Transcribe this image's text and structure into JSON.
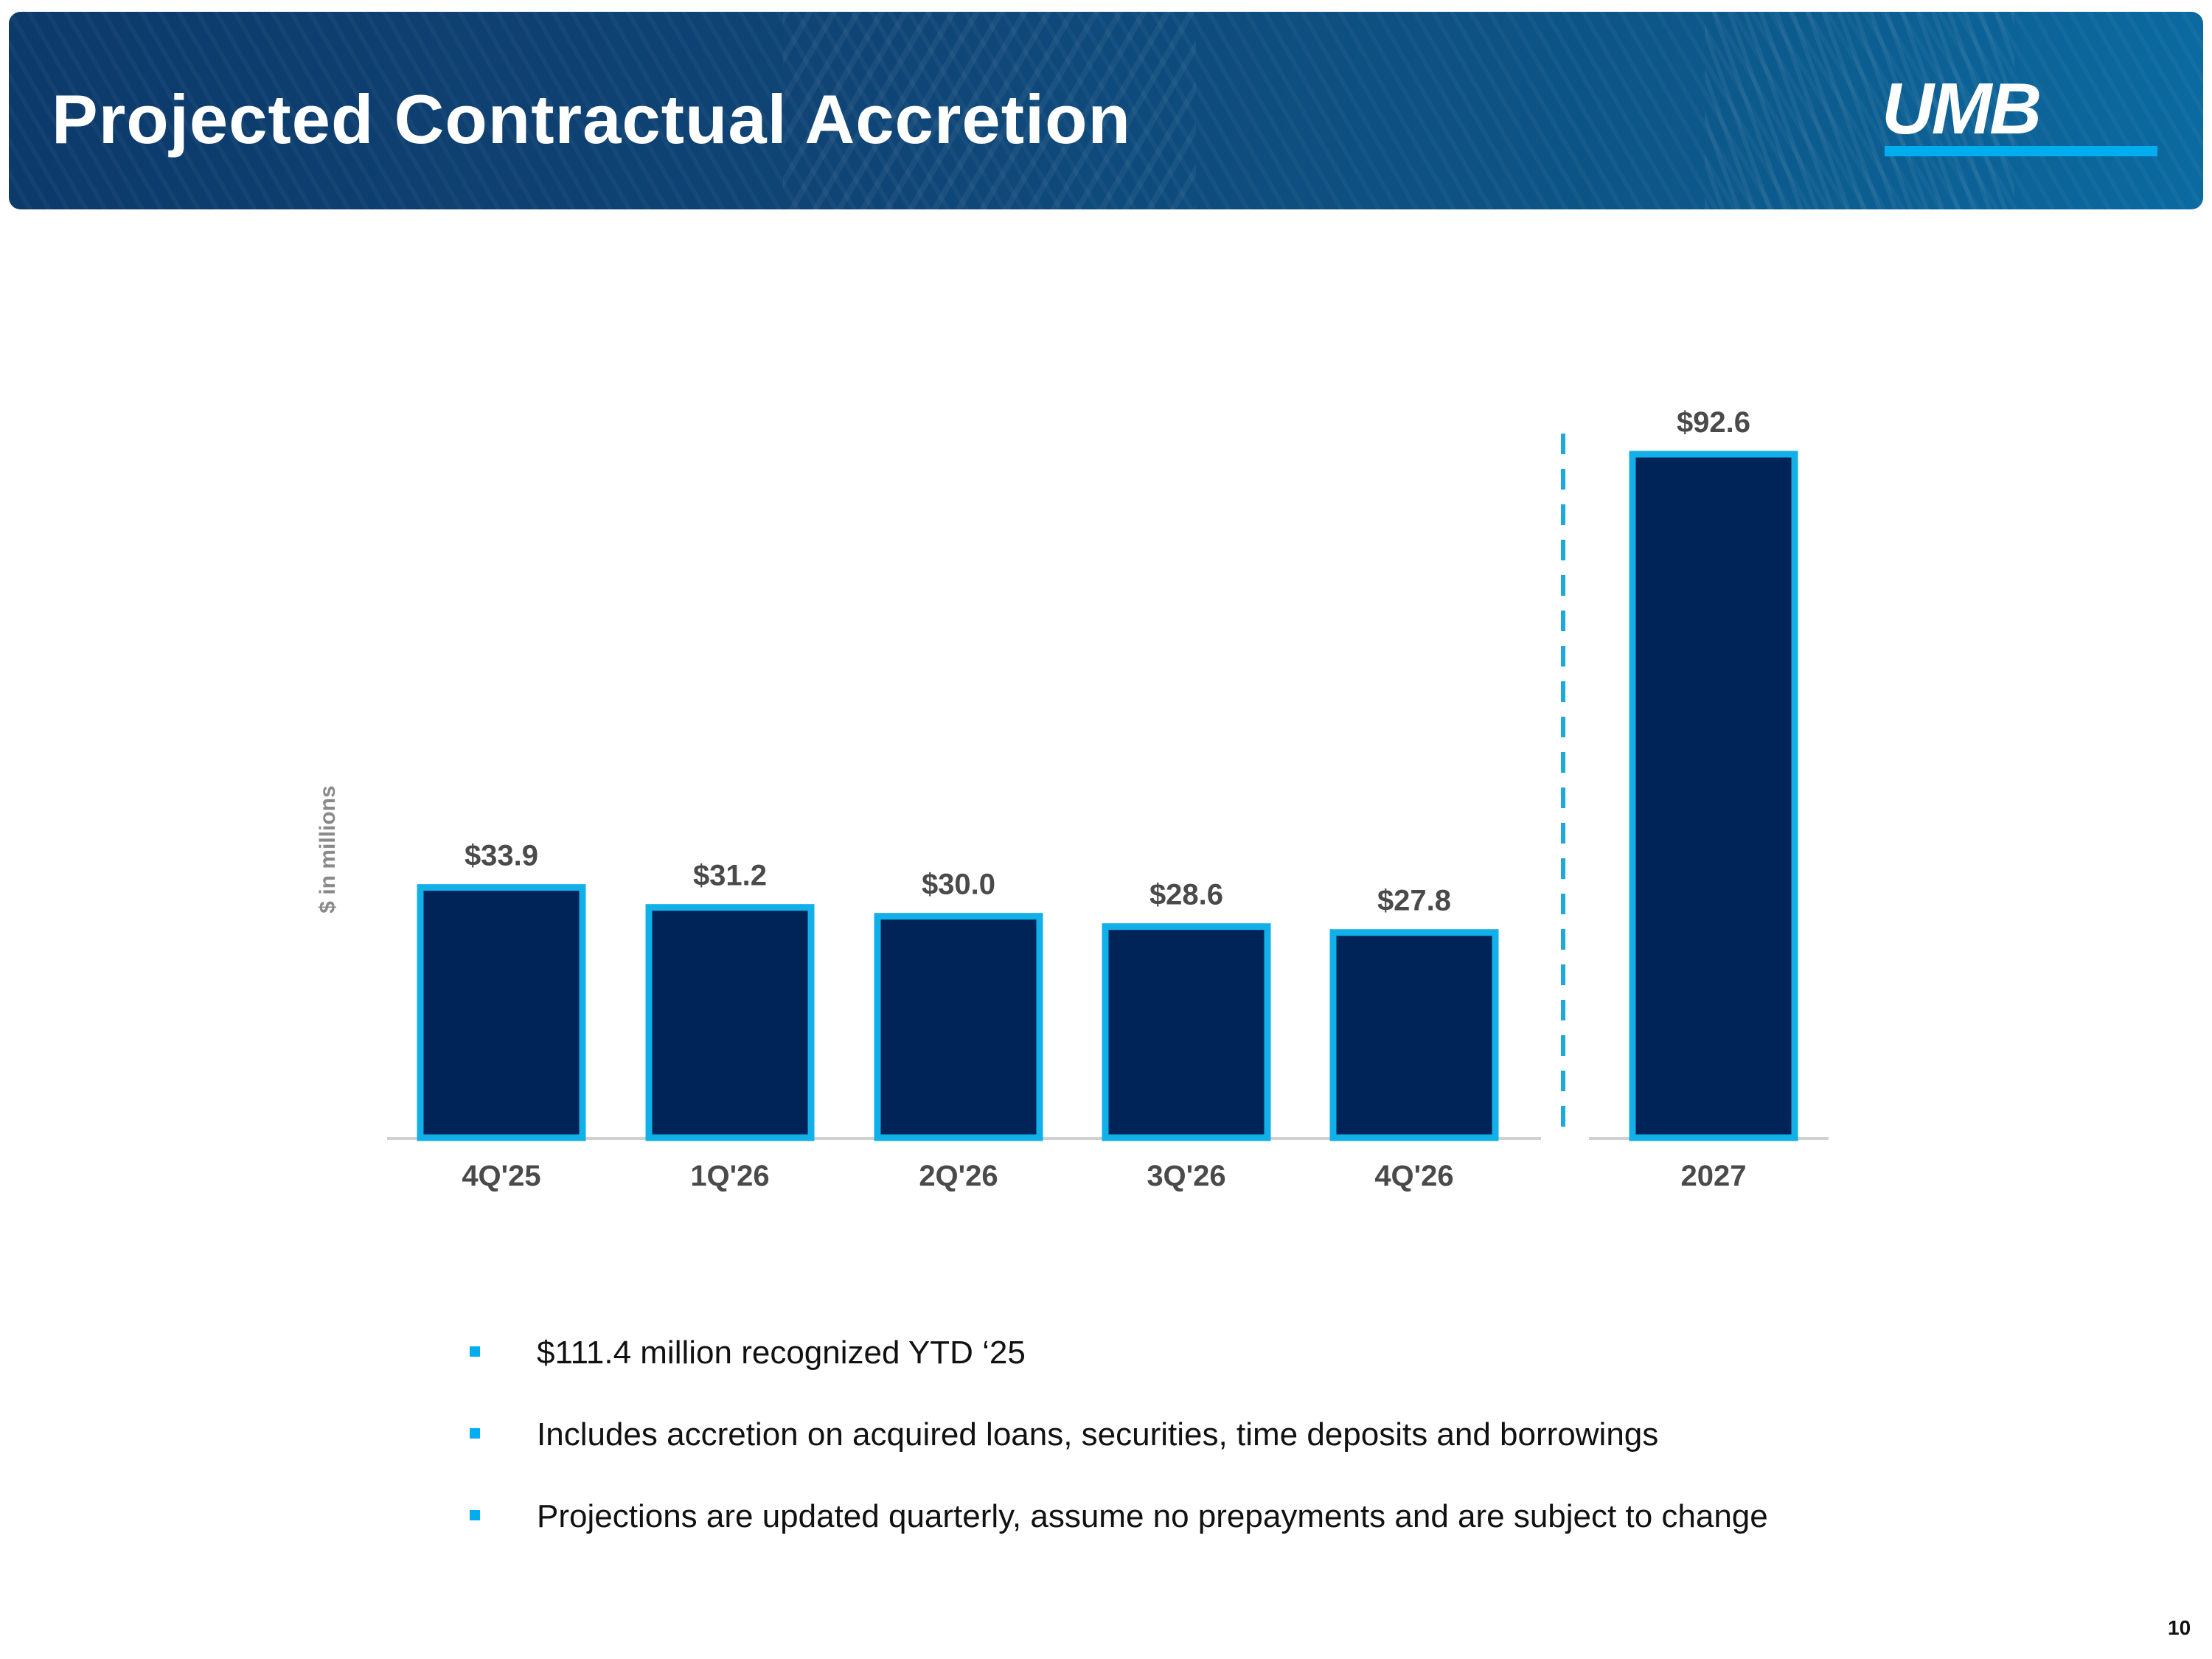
{
  "header": {
    "title": "Projected Contractual Accretion",
    "logo_text": "UMB"
  },
  "chart_data": {
    "type": "bar",
    "title": "Projected Contractual Accretion",
    "ylabel": "$ in millions",
    "xlabel": "",
    "categories": [
      "4Q'25",
      "1Q'26",
      "2Q'26",
      "3Q'26",
      "4Q'26",
      "2027"
    ],
    "values": [
      33.9,
      31.2,
      30.0,
      28.6,
      27.8,
      92.6
    ],
    "data_labels": [
      "$33.9",
      "$31.2",
      "$30.0",
      "$28.6",
      "$27.8",
      "$92.6"
    ],
    "ylim": [
      0,
      92.6
    ],
    "grid": false,
    "separator": "dashed line between 4Q'26 and 2027",
    "colors": {
      "bar_fill": "#002358",
      "bar_border": "#12b0e8",
      "label": "#4a4a4a",
      "separator": "#1ea9de",
      "baseline": "#d0d0d0"
    }
  },
  "bullets": [
    "$111.4 million recognized YTD ‘25",
    "Includes accretion on acquired loans, securities, time deposits and borrowings",
    "Projections are updated quarterly, assume no prepayments and are subject to change"
  ],
  "page_number": "10"
}
